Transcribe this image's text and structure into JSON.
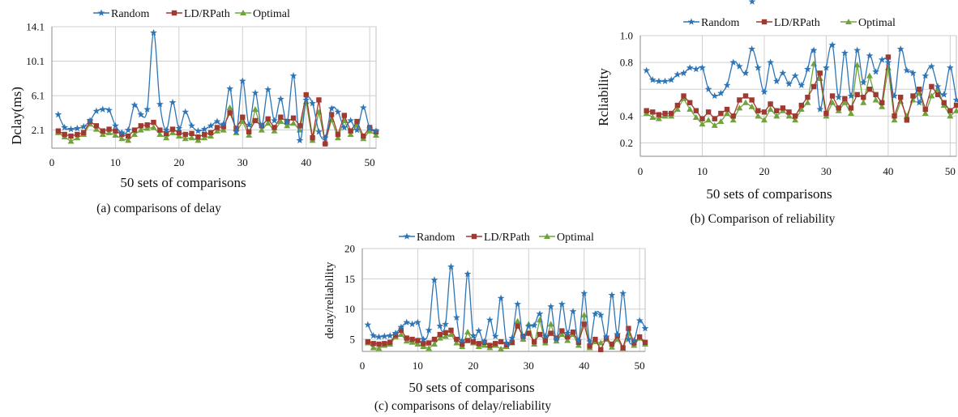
{
  "chart_data": [
    {
      "type": "line",
      "caption": "(a)  comparisons of delay",
      "xlabel": "50 sets of comparisons",
      "ylabel": "Dclay(ms)",
      "xlim": [
        0,
        51
      ],
      "ylim": [
        0,
        14.1
      ],
      "xticks": [
        0,
        10,
        20,
        30,
        40,
        50
      ],
      "yticks": [
        2.1,
        6.1,
        10.1,
        14.1
      ],
      "ytick_labels": [
        "2.1",
        "6.1",
        "10.1",
        "14.1"
      ],
      "legend": "top",
      "grid": true,
      "series": [
        {
          "name": "Random",
          "color": "#2E75B6",
          "marker": "star",
          "smooth": true,
          "x": [
            1,
            2,
            3,
            4,
            5,
            6,
            7,
            8,
            9,
            10,
            11,
            12,
            13,
            14,
            15,
            16,
            17,
            18,
            19,
            20,
            21,
            22,
            23,
            24,
            25,
            26,
            27,
            28,
            29,
            30,
            31,
            32,
            33,
            34,
            35,
            36,
            37,
            38,
            39,
            40,
            41,
            42,
            43,
            44,
            45,
            46,
            47,
            48,
            49,
            50,
            51
          ],
          "values": [
            3.9,
            2.4,
            2.2,
            2.3,
            2.5,
            3.2,
            4.3,
            4.5,
            4.4,
            2.6,
            1.8,
            2.1,
            5.0,
            3.9,
            4.5,
            13.4,
            5.1,
            2.1,
            5.3,
            2.3,
            4.2,
            2.6,
            2.0,
            2.2,
            2.6,
            3.1,
            2.8,
            6.9,
            1.9,
            7.8,
            2.7,
            6.4,
            2.6,
            6.8,
            3.2,
            5.7,
            3.0,
            8.4,
            0.9,
            5.6,
            5.2,
            1.9,
            1.2,
            4.6,
            4.2,
            2.4,
            3.2,
            2.1,
            4.7,
            2.3,
            2.0
          ]
        },
        {
          "name": "LD/RPath",
          "color": "#A0392F",
          "marker": "square",
          "smooth": false,
          "x": [
            1,
            2,
            3,
            4,
            5,
            6,
            7,
            8,
            9,
            10,
            11,
            12,
            13,
            14,
            15,
            16,
            17,
            18,
            19,
            20,
            21,
            22,
            23,
            24,
            25,
            26,
            27,
            28,
            29,
            30,
            31,
            32,
            33,
            34,
            35,
            36,
            37,
            38,
            39,
            40,
            41,
            42,
            43,
            44,
            45,
            46,
            47,
            48,
            49,
            50,
            51
          ],
          "values": [
            2.0,
            1.6,
            1.4,
            1.6,
            1.8,
            3.1,
            2.6,
            2.0,
            2.2,
            2.0,
            1.6,
            1.4,
            2.1,
            2.6,
            2.7,
            3.0,
            2.1,
            1.7,
            2.2,
            1.8,
            1.6,
            1.7,
            1.3,
            1.6,
            1.8,
            2.4,
            2.5,
            4.1,
            2.3,
            3.6,
            1.9,
            3.2,
            2.6,
            3.4,
            2.4,
            3.6,
            3.1,
            3.5,
            2.6,
            6.2,
            1.2,
            5.6,
            0.5,
            3.9,
            1.6,
            3.8,
            2.0,
            3.1,
            1.4,
            2.4,
            1.9
          ]
        },
        {
          "name": "Optimal",
          "color": "#70A33A",
          "marker": "triangle",
          "smooth": false,
          "x": [
            1,
            2,
            3,
            4,
            5,
            6,
            7,
            8,
            9,
            10,
            11,
            12,
            13,
            14,
            15,
            16,
            17,
            18,
            19,
            20,
            21,
            22,
            23,
            24,
            25,
            26,
            27,
            28,
            29,
            30,
            31,
            32,
            33,
            34,
            35,
            36,
            37,
            38,
            39,
            40,
            41,
            42,
            43,
            44,
            45,
            46,
            47,
            48,
            49,
            50,
            51
          ],
          "values": [
            1.8,
            1.3,
            0.8,
            1.2,
            1.6,
            2.8,
            2.2,
            1.6,
            1.8,
            1.5,
            1.1,
            0.9,
            1.6,
            2.1,
            2.3,
            2.4,
            1.6,
            1.2,
            1.8,
            1.4,
            1.1,
            1.2,
            0.9,
            1.2,
            1.4,
            2.0,
            2.1,
            4.7,
            1.8,
            3.1,
            1.5,
            4.5,
            2.1,
            2.9,
            2.0,
            3.1,
            2.6,
            2.9,
            2.1,
            5.4,
            0.9,
            4.2,
            0.7,
            3.3,
            1.2,
            3.2,
            1.6,
            2.7,
            1.1,
            2.0,
            1.5
          ]
        }
      ]
    },
    {
      "type": "line",
      "caption": "(b)  Comparison of reliability",
      "xlabel": "50 sets of comparisons",
      "ylabel": "Rcliability",
      "xlim": [
        0,
        51
      ],
      "ylim": [
        0.1,
        1.0
      ],
      "xticks": [
        0,
        10,
        20,
        30,
        40,
        50
      ],
      "yticks": [
        0.2,
        0.4,
        0.6,
        0.8,
        1.0
      ],
      "ytick_labels": [
        "0.2",
        "0.4",
        "",
        "0.8",
        "1.0"
      ],
      "legend": "top",
      "grid": true,
      "series": [
        {
          "name": "Random",
          "color": "#2E75B6",
          "marker": "star",
          "smooth": true,
          "x": [
            1,
            2,
            3,
            4,
            5,
            6,
            7,
            8,
            9,
            10,
            11,
            12,
            13,
            14,
            15,
            16,
            17,
            18,
            19,
            20,
            21,
            22,
            23,
            24,
            25,
            26,
            27,
            28,
            29,
            30,
            31,
            32,
            33,
            34,
            35,
            36,
            37,
            38,
            39,
            40,
            41,
            42,
            43,
            44,
            45,
            46,
            47,
            48,
            49,
            50,
            51
          ],
          "values": [
            0.74,
            0.67,
            0.66,
            0.66,
            0.67,
            0.71,
            0.72,
            0.76,
            0.75,
            0.76,
            0.6,
            0.55,
            0.57,
            0.63,
            0.8,
            0.77,
            0.72,
            0.9,
            0.76,
            0.58,
            0.8,
            0.66,
            0.72,
            0.64,
            0.7,
            0.63,
            0.75,
            0.89,
            0.45,
            0.76,
            0.93,
            0.54,
            0.87,
            0.55,
            0.89,
            0.65,
            0.85,
            0.73,
            0.82,
            0.8,
            0.55,
            0.9,
            0.74,
            0.72,
            0.5,
            0.7,
            0.77,
            0.62,
            0.56,
            0.76,
            0.52
          ]
        },
        {
          "name": "LD/RPath",
          "color": "#A0392F",
          "marker": "square",
          "smooth": false,
          "x": [
            1,
            2,
            3,
            4,
            5,
            6,
            7,
            8,
            9,
            10,
            11,
            12,
            13,
            14,
            15,
            16,
            17,
            18,
            19,
            20,
            21,
            22,
            23,
            24,
            25,
            26,
            27,
            28,
            29,
            30,
            31,
            32,
            33,
            34,
            35,
            36,
            37,
            38,
            39,
            40,
            41,
            42,
            43,
            44,
            45,
            46,
            47,
            48,
            49,
            50,
            51
          ],
          "values": [
            0.44,
            0.43,
            0.41,
            0.42,
            0.42,
            0.48,
            0.55,
            0.5,
            0.44,
            0.38,
            0.43,
            0.38,
            0.42,
            0.45,
            0.4,
            0.52,
            0.55,
            0.52,
            0.44,
            0.43,
            0.49,
            0.44,
            0.46,
            0.43,
            0.4,
            0.48,
            0.54,
            0.62,
            0.72,
            0.42,
            0.55,
            0.46,
            0.53,
            0.46,
            0.56,
            0.54,
            0.6,
            0.56,
            0.5,
            0.84,
            0.4,
            0.54,
            0.37,
            0.55,
            0.6,
            0.45,
            0.62,
            0.56,
            0.5,
            0.44,
            0.48
          ]
        },
        {
          "name": "Optimal",
          "color": "#70A33A",
          "marker": "triangle",
          "smooth": false,
          "x": [
            1,
            2,
            3,
            4,
            5,
            6,
            7,
            8,
            9,
            10,
            11,
            12,
            13,
            14,
            15,
            16,
            17,
            18,
            19,
            20,
            21,
            22,
            23,
            24,
            25,
            26,
            27,
            28,
            29,
            30,
            31,
            32,
            33,
            34,
            35,
            36,
            37,
            38,
            39,
            40,
            41,
            42,
            43,
            44,
            45,
            46,
            47,
            48,
            49,
            50,
            51
          ],
          "values": [
            0.42,
            0.39,
            0.38,
            0.4,
            0.4,
            0.45,
            0.53,
            0.45,
            0.39,
            0.34,
            0.37,
            0.33,
            0.36,
            0.42,
            0.37,
            0.46,
            0.5,
            0.47,
            0.4,
            0.37,
            0.45,
            0.4,
            0.44,
            0.4,
            0.37,
            0.45,
            0.5,
            0.79,
            0.68,
            0.4,
            0.5,
            0.44,
            0.5,
            0.42,
            0.78,
            0.5,
            0.7,
            0.52,
            0.47,
            0.76,
            0.37,
            0.51,
            0.4,
            0.52,
            0.57,
            0.42,
            0.55,
            0.6,
            0.48,
            0.4,
            0.44
          ]
        }
      ]
    },
    {
      "type": "line",
      "caption": "(c)  comparisons of delay/reliability",
      "xlabel": "50 sets of comparisons",
      "ylabel": "delay/reliability",
      "xlim": [
        0,
        51
      ],
      "ylim": [
        3,
        20
      ],
      "xticks": [
        0,
        10,
        20,
        30,
        40,
        50
      ],
      "yticks": [
        5,
        10,
        15,
        20
      ],
      "ytick_labels": [
        "5",
        "10",
        "15",
        "20"
      ],
      "legend": "top",
      "grid": true,
      "series": [
        {
          "name": "Random",
          "color": "#2E75B6",
          "marker": "star",
          "smooth": true,
          "x": [
            1,
            2,
            3,
            4,
            5,
            6,
            7,
            8,
            9,
            10,
            11,
            12,
            13,
            14,
            15,
            16,
            17,
            18,
            19,
            20,
            21,
            22,
            23,
            24,
            25,
            26,
            27,
            28,
            29,
            30,
            31,
            32,
            33,
            34,
            35,
            36,
            37,
            38,
            39,
            40,
            41,
            42,
            43,
            44,
            45,
            46,
            47,
            48,
            49,
            50,
            51
          ],
          "values": [
            7.4,
            5.6,
            5.4,
            5.5,
            5.6,
            6.0,
            7.0,
            7.8,
            7.5,
            7.8,
            5.0,
            6.5,
            14.8,
            7.2,
            7.5,
            17.0,
            8.6,
            4.8,
            15.8,
            5.6,
            6.4,
            4.6,
            8.2,
            5.5,
            11.8,
            4.4,
            5.2,
            10.8,
            5.4,
            7.2,
            7.3,
            9.2,
            5.5,
            10.4,
            5.0,
            10.8,
            6.0,
            9.6,
            4.8,
            12.6,
            4.6,
            9.2,
            9.0,
            5.4,
            12.3,
            5.8,
            12.6,
            5.0,
            4.8,
            8.1,
            6.8
          ]
        },
        {
          "name": "LD/RPath",
          "color": "#A0392F",
          "marker": "square",
          "smooth": false,
          "x": [
            1,
            2,
            3,
            4,
            5,
            6,
            7,
            8,
            9,
            10,
            11,
            12,
            13,
            14,
            15,
            16,
            17,
            18,
            19,
            20,
            21,
            22,
            23,
            24,
            25,
            26,
            27,
            28,
            29,
            30,
            31,
            32,
            33,
            34,
            35,
            36,
            37,
            38,
            39,
            40,
            41,
            42,
            43,
            44,
            45,
            46,
            47,
            48,
            49,
            50,
            51
          ],
          "values": [
            4.6,
            4.3,
            4.2,
            4.3,
            4.5,
            5.7,
            6.5,
            5.2,
            5.0,
            4.8,
            4.3,
            4.4,
            5.0,
            5.8,
            6.1,
            6.5,
            5.0,
            4.2,
            4.8,
            4.6,
            4.3,
            4.5,
            4.0,
            4.3,
            4.6,
            4.1,
            4.5,
            7.2,
            5.5,
            6.0,
            4.6,
            5.8,
            4.8,
            6.0,
            5.2,
            6.4,
            5.4,
            6.2,
            4.5,
            7.5,
            3.9,
            5.0,
            3.3,
            5.2,
            4.2,
            5.6,
            3.6,
            6.8,
            4.4,
            5.4,
            4.5
          ]
        },
        {
          "name": "Optimal",
          "color": "#70A33A",
          "marker": "triangle",
          "smooth": false,
          "x": [
            1,
            2,
            3,
            4,
            5,
            6,
            7,
            8,
            9,
            10,
            11,
            12,
            13,
            14,
            15,
            16,
            17,
            18,
            19,
            20,
            21,
            22,
            23,
            24,
            25,
            26,
            27,
            28,
            29,
            30,
            31,
            32,
            33,
            34,
            35,
            36,
            37,
            38,
            39,
            40,
            41,
            42,
            43,
            44,
            45,
            46,
            47,
            48,
            49,
            50,
            51
          ],
          "values": [
            4.4,
            3.6,
            3.5,
            4.0,
            4.2,
            5.4,
            5.8,
            4.7,
            4.5,
            4.2,
            3.8,
            3.5,
            4.2,
            5.2,
            5.5,
            5.8,
            4.4,
            3.8,
            6.2,
            4.4,
            3.8,
            4.0,
            3.6,
            4.0,
            3.4,
            3.8,
            4.4,
            8.0,
            5.0,
            7.5,
            4.2,
            8.2,
            4.4,
            7.5,
            4.7,
            5.8,
            4.8,
            5.8,
            4.0,
            9.0,
            3.6,
            4.6,
            4.4,
            5.0,
            3.7,
            5.0,
            3.5,
            6.0,
            4.0,
            5.2,
            4.2
          ]
        }
      ]
    }
  ],
  "stray_star_color": "#2E75B6"
}
